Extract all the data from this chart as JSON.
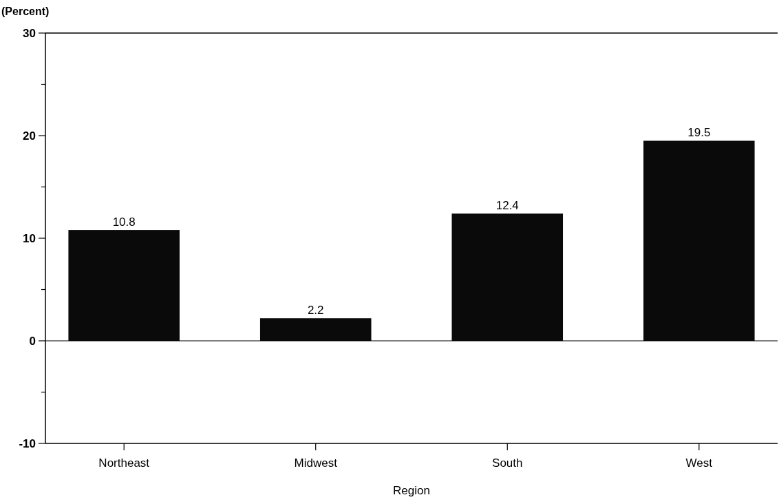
{
  "chart_data": {
    "type": "bar",
    "ylabel": "(Percent)",
    "xlabel": "Region",
    "categories": [
      "Northeast",
      "Midwest",
      "South",
      "West"
    ],
    "values": [
      10.8,
      2.2,
      12.4,
      19.5
    ],
    "color": "#0a0a0a",
    "ylim": [
      -10,
      30
    ],
    "yticks": [
      -10,
      {
        "value": -5,
        "label": null
      },
      0,
      {
        "value": 5,
        "label": null
      },
      10,
      {
        "value": 15,
        "label": null
      },
      20,
      {
        "value": 25,
        "label": null
      },
      30
    ],
    "data_labels": true
  }
}
